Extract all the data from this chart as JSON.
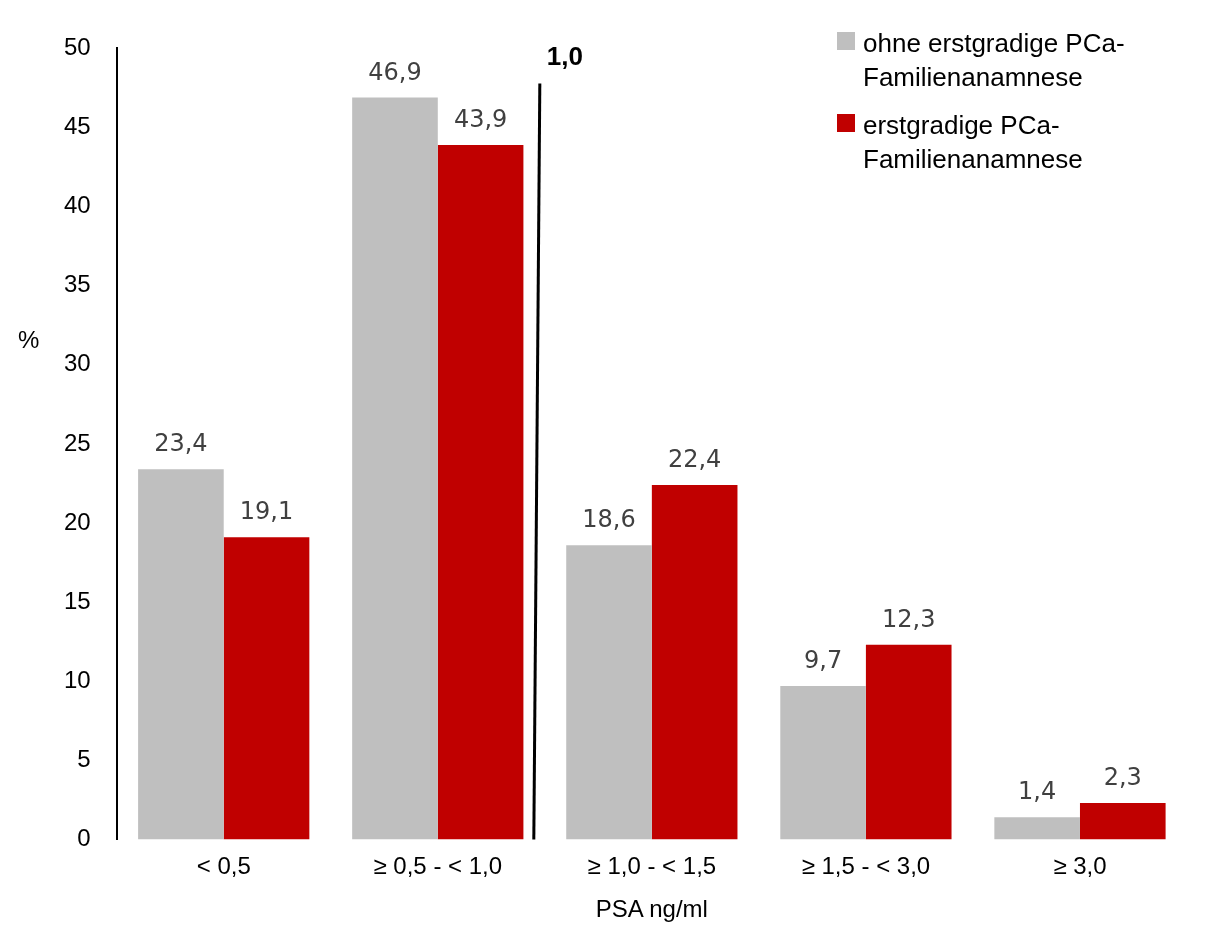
{
  "chart_data": {
    "type": "bar",
    "xlabel": "PSA ng/ml",
    "ylabel": "%",
    "categories": [
      "< 0,5",
      "≥ 0,5 - < 1,0",
      "≥ 1,0 - < 1,5",
      "≥ 1,5 - < 3,0",
      "≥ 3,0"
    ],
    "series": [
      {
        "name": "ohne erstgradige PCa-Familienanamnese",
        "color": "#bfbfbf",
        "values": [
          23.4,
          46.9,
          18.6,
          9.7,
          1.4
        ],
        "value_labels": [
          "23,4",
          "46,9",
          "18,6",
          "9,7",
          "1,4"
        ]
      },
      {
        "name": "erstgradige PCa-Familienanamnese",
        "color": "#c00000",
        "values": [
          19.1,
          43.9,
          22.4,
          12.3,
          2.3
        ],
        "value_labels": [
          "19,1",
          "43,9",
          "22,4",
          "12,3",
          "2,3"
        ]
      }
    ],
    "ylim": [
      0,
      50
    ],
    "yticks": [
      0,
      5,
      10,
      15,
      20,
      25,
      30,
      35,
      40,
      45,
      50
    ],
    "grid": false,
    "legend": "top right",
    "annotations": [
      "1,0"
    ]
  }
}
